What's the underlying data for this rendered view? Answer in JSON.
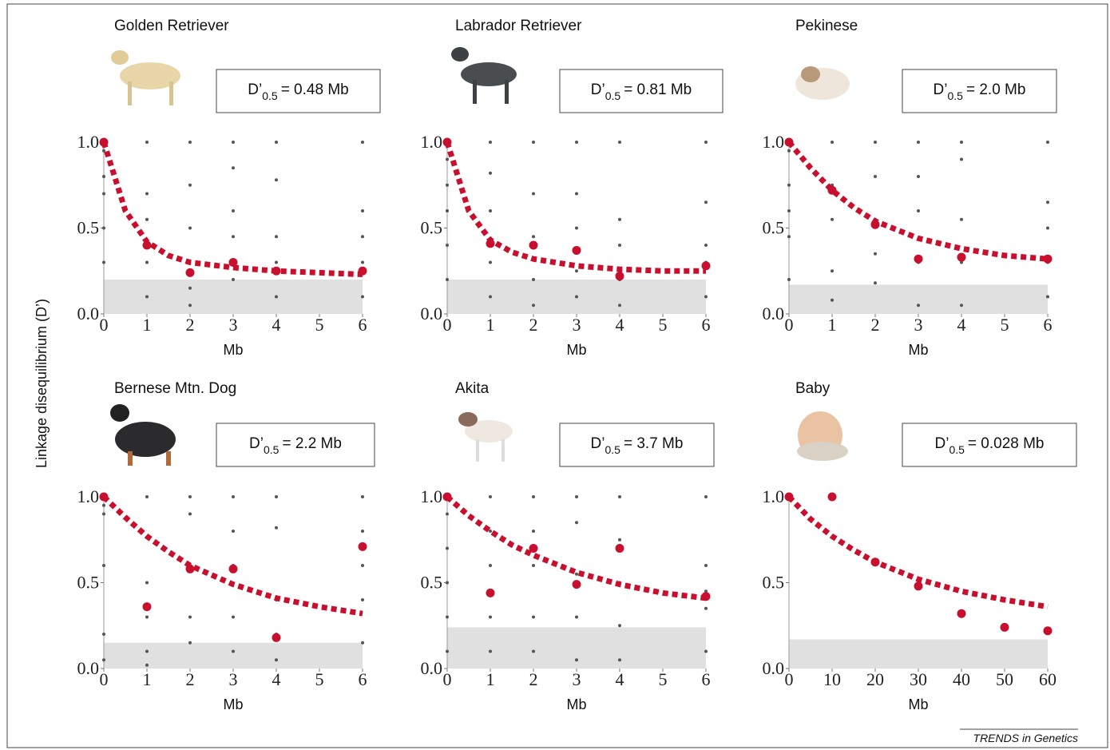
{
  "ylabel": "Linkage disequilibrium (D’)",
  "source": "TRENDS in Genetics",
  "chart_data": [
    {
      "type": "scatter",
      "title": "Golden Retriever",
      "xlabel": "Mb",
      "annotation": {
        "symbol": "D’",
        "subscript": "0.5",
        "text": "= 0.48 Mb"
      },
      "xlim": [
        0,
        6
      ],
      "ylim": [
        0,
        1
      ],
      "xticks": [
        0,
        1,
        2,
        3,
        4,
        5,
        6
      ],
      "yticks": [
        {
          "value": 0,
          "label": "0.0"
        },
        {
          "value": 0.5,
          "label": "0.5"
        },
        {
          "value": 1,
          "label": "1.0"
        }
      ],
      "threshold": 0.2,
      "threshold_color": "#e0e0e0",
      "samples": {
        "color": "#555555",
        "x": [
          0,
          0,
          0,
          0,
          0,
          1,
          1,
          1,
          1,
          1,
          2,
          2,
          2,
          2,
          2,
          3,
          3,
          3,
          3,
          3,
          4,
          4,
          4,
          4,
          4,
          6,
          6,
          6,
          6,
          6
        ],
        "values": [
          0.95,
          0.8,
          0.7,
          0.5,
          0.3,
          1.0,
          0.7,
          0.55,
          0.3,
          0.1,
          1.0,
          0.75,
          0.5,
          0.15,
          0.05,
          1.0,
          0.85,
          0.6,
          0.45,
          0.2,
          1.0,
          0.78,
          0.45,
          0.3,
          0.1,
          1.0,
          0.6,
          0.45,
          0.3,
          0.1
        ]
      },
      "curve": {
        "color": "#c8102e",
        "x": [
          0,
          0.5,
          1,
          1.5,
          2,
          3,
          4,
          5,
          6
        ],
        "values": [
          1,
          0.6,
          0.42,
          0.34,
          0.3,
          0.27,
          0.25,
          0.24,
          0.23
        ]
      },
      "means": {
        "color": "#c8102e",
        "x": [
          0,
          1,
          2,
          3,
          4,
          6
        ],
        "values": [
          1.0,
          0.4,
          0.24,
          0.3,
          0.25,
          0.25
        ]
      }
    },
    {
      "type": "scatter",
      "title": "Labrador Retriever",
      "xlabel": "Mb",
      "annotation": {
        "symbol": "D’",
        "subscript": "0.5",
        "text": "= 0.81 Mb"
      },
      "xlim": [
        0,
        6
      ],
      "ylim": [
        0,
        1
      ],
      "xticks": [
        0,
        1,
        2,
        3,
        4,
        5,
        6
      ],
      "yticks": [
        {
          "value": 0,
          "label": "0.0"
        },
        {
          "value": 0.5,
          "label": "0.5"
        },
        {
          "value": 1,
          "label": "1.0"
        }
      ],
      "threshold": 0.2,
      "threshold_color": "#e0e0e0",
      "samples": {
        "color": "#555555",
        "x": [
          0,
          0,
          0,
          0,
          0,
          1,
          1,
          1,
          1,
          1,
          2,
          2,
          2,
          2,
          2,
          3,
          3,
          3,
          3,
          3,
          4,
          4,
          4,
          4,
          4,
          6,
          6,
          6,
          6,
          6
        ],
        "values": [
          0.9,
          0.75,
          0.6,
          0.4,
          0.2,
          1.0,
          0.82,
          0.6,
          0.3,
          0.1,
          1.0,
          0.7,
          0.45,
          0.2,
          0.05,
          1.0,
          0.7,
          0.5,
          0.25,
          0.1,
          1.0,
          0.55,
          0.4,
          0.2,
          0.05,
          1.0,
          0.65,
          0.4,
          0.3,
          0.1
        ]
      },
      "curve": {
        "color": "#c8102e",
        "x": [
          0,
          0.5,
          1,
          1.5,
          2,
          3,
          4,
          5,
          6
        ],
        "values": [
          1,
          0.6,
          0.43,
          0.36,
          0.32,
          0.28,
          0.26,
          0.25,
          0.25
        ]
      },
      "means": {
        "color": "#c8102e",
        "x": [
          0,
          1,
          2,
          3,
          4,
          6
        ],
        "values": [
          1.0,
          0.41,
          0.4,
          0.37,
          0.22,
          0.28
        ]
      }
    },
    {
      "type": "scatter",
      "title": "Pekinese",
      "xlabel": "Mb",
      "annotation": {
        "symbol": "D’",
        "subscript": "0.5",
        "text": "= 2.0 Mb"
      },
      "xlim": [
        0,
        6
      ],
      "ylim": [
        0,
        1
      ],
      "xticks": [
        0,
        1,
        2,
        3,
        4,
        5,
        6
      ],
      "yticks": [
        {
          "value": 0,
          "label": "0.0"
        },
        {
          "value": 0.5,
          "label": "0.5"
        },
        {
          "value": 1,
          "label": "1.0"
        }
      ],
      "threshold": 0.17,
      "threshold_color": "#e0e0e0",
      "samples": {
        "color": "#555555",
        "x": [
          0,
          0,
          0,
          0,
          0,
          1,
          1,
          1,
          1,
          1,
          2,
          2,
          2,
          2,
          2,
          3,
          3,
          3,
          3,
          3,
          4,
          4,
          4,
          4,
          4,
          6,
          6,
          6,
          6,
          6
        ],
        "values": [
          0.95,
          0.75,
          0.6,
          0.45,
          0.2,
          1.0,
          0.75,
          0.55,
          0.25,
          0.08,
          1.0,
          0.8,
          0.55,
          0.35,
          0.18,
          1.0,
          0.8,
          0.6,
          0.3,
          0.05,
          1.0,
          0.9,
          0.55,
          0.3,
          0.05,
          1.0,
          0.65,
          0.5,
          0.3,
          0.1
        ]
      },
      "curve": {
        "color": "#c8102e",
        "x": [
          0,
          0.5,
          1,
          1.5,
          2,
          3,
          4,
          5,
          6
        ],
        "values": [
          1,
          0.85,
          0.72,
          0.62,
          0.54,
          0.44,
          0.38,
          0.34,
          0.32
        ]
      },
      "means": {
        "color": "#c8102e",
        "x": [
          0,
          1,
          2,
          3,
          4,
          6
        ],
        "values": [
          1.0,
          0.72,
          0.52,
          0.32,
          0.33,
          0.32
        ]
      }
    },
    {
      "type": "scatter",
      "title": "Bernese Mtn. Dog",
      "xlabel": "Mb",
      "annotation": {
        "symbol": "D’",
        "subscript": "0.5",
        "text": "= 2.2 Mb"
      },
      "xlim": [
        0,
        6
      ],
      "ylim": [
        0,
        1
      ],
      "xticks": [
        0,
        1,
        2,
        3,
        4,
        5,
        6
      ],
      "yticks": [
        {
          "value": 0,
          "label": "0.0"
        },
        {
          "value": 0.5,
          "label": "0.5"
        },
        {
          "value": 1,
          "label": "1.0"
        }
      ],
      "threshold": 0.15,
      "threshold_color": "#e0e0e0",
      "samples": {
        "color": "#555555",
        "x": [
          0,
          0,
          0,
          0,
          0,
          1,
          1,
          1,
          1,
          1,
          2,
          2,
          2,
          2,
          2,
          3,
          3,
          3,
          3,
          3,
          4,
          4,
          4,
          4,
          4,
          6,
          6,
          6,
          6,
          6
        ],
        "values": [
          0.95,
          0.9,
          0.6,
          0.2,
          0.05,
          1.0,
          0.5,
          0.3,
          0.1,
          0.02,
          1.0,
          0.9,
          0.6,
          0.3,
          0.15,
          1.0,
          0.8,
          0.6,
          0.3,
          0.1,
          1.0,
          0.82,
          0.4,
          0.2,
          0.05,
          1.0,
          0.8,
          0.6,
          0.4,
          0.15
        ]
      },
      "curve": {
        "color": "#c8102e",
        "x": [
          0,
          0.5,
          1,
          1.5,
          2,
          3,
          4,
          5,
          6
        ],
        "values": [
          1,
          0.88,
          0.77,
          0.68,
          0.6,
          0.49,
          0.41,
          0.36,
          0.32
        ]
      },
      "means": {
        "color": "#c8102e",
        "x": [
          0,
          1,
          2,
          3,
          4,
          6
        ],
        "values": [
          1.0,
          0.36,
          0.58,
          0.58,
          0.18,
          0.71
        ]
      }
    },
    {
      "type": "scatter",
      "title": "Akita",
      "xlabel": "Mb",
      "annotation": {
        "symbol": "D’",
        "subscript": "0.5",
        "text": "= 3.7 Mb"
      },
      "xlim": [
        0,
        6
      ],
      "ylim": [
        0,
        1
      ],
      "xticks": [
        0,
        1,
        2,
        3,
        4,
        5,
        6
      ],
      "yticks": [
        {
          "value": 0,
          "label": "0.0"
        },
        {
          "value": 0.5,
          "label": "0.5"
        },
        {
          "value": 1,
          "label": "1.0"
        }
      ],
      "threshold": 0.24,
      "threshold_color": "#e0e0e0",
      "samples": {
        "color": "#555555",
        "x": [
          0,
          0,
          0,
          0,
          0,
          1,
          1,
          1,
          1,
          1,
          2,
          2,
          2,
          2,
          2,
          3,
          3,
          3,
          3,
          3,
          4,
          4,
          4,
          4,
          4,
          6,
          6,
          6,
          6,
          6
        ],
        "values": [
          0.9,
          0.7,
          0.5,
          0.3,
          0.1,
          1.0,
          0.8,
          0.6,
          0.3,
          0.1,
          1.0,
          0.8,
          0.6,
          0.3,
          0.1,
          1.0,
          0.85,
          0.55,
          0.3,
          0.05,
          1.0,
          0.75,
          0.5,
          0.25,
          0.05,
          1.0,
          0.6,
          0.45,
          0.35,
          0.1
        ]
      },
      "curve": {
        "color": "#c8102e",
        "x": [
          0,
          0.5,
          1,
          1.5,
          2,
          3,
          4,
          5,
          6
        ],
        "values": [
          1,
          0.89,
          0.8,
          0.72,
          0.66,
          0.56,
          0.49,
          0.44,
          0.41
        ]
      },
      "means": {
        "color": "#c8102e",
        "x": [
          0,
          1,
          2,
          3,
          4,
          6
        ],
        "values": [
          1.0,
          0.44,
          0.7,
          0.49,
          0.7,
          0.42
        ]
      }
    },
    {
      "type": "scatter",
      "title": "Baby",
      "xlabel": "Mb",
      "annotation": {
        "symbol": "D’",
        "subscript": "0.5",
        "text": "= 0.028 Mb"
      },
      "xlim": [
        0,
        60
      ],
      "ylim": [
        0,
        1
      ],
      "xticks": [
        0,
        10,
        20,
        30,
        40,
        50,
        60
      ],
      "yticks": [
        {
          "value": 0,
          "label": "0.0"
        },
        {
          "value": 0.5,
          "label": "0.5"
        },
        {
          "value": 1,
          "label": "1.0"
        }
      ],
      "threshold": 0.17,
      "threshold_color": "#e0e0e0",
      "curve": {
        "color": "#c8102e",
        "x": [
          0,
          5,
          10,
          15,
          20,
          30,
          40,
          50,
          60
        ],
        "values": [
          1,
          0.87,
          0.77,
          0.69,
          0.62,
          0.52,
          0.45,
          0.4,
          0.36
        ]
      },
      "means": {
        "color": "#c8102e",
        "x": [
          0,
          10,
          20,
          30,
          40,
          50,
          60
        ],
        "values": [
          1.0,
          1.0,
          0.62,
          0.48,
          0.32,
          0.24,
          0.22
        ]
      }
    }
  ]
}
